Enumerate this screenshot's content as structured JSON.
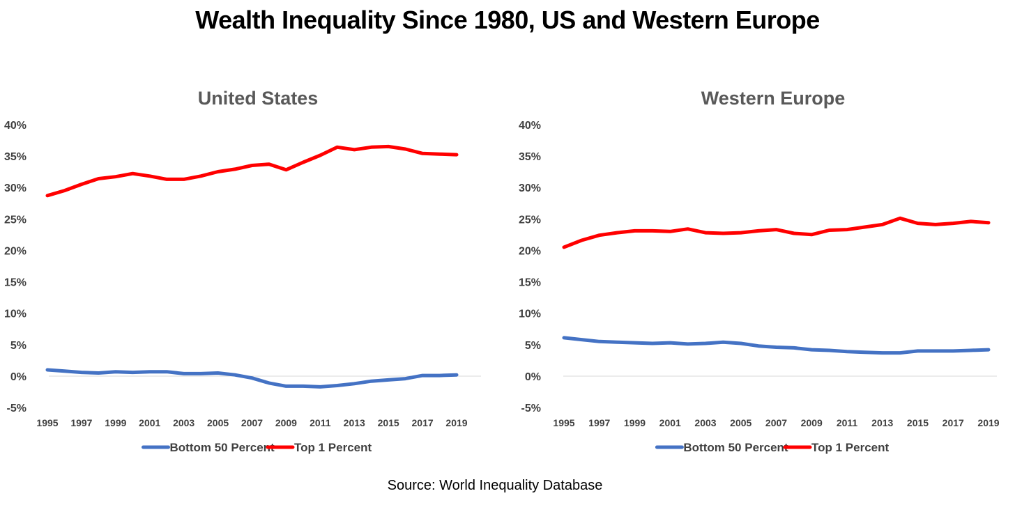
{
  "title": "Wealth Inequality Since 1980, US and Western Europe",
  "source": "Source: World Inequality Database",
  "colors": {
    "bottom50": "#4472C4",
    "top1": "#FF0000",
    "zero_line": "#D9D9D9",
    "panel_title": "#595959",
    "tick_text": "#404040"
  },
  "chart_data": [
    {
      "type": "line",
      "title": "United States",
      "x": [
        1995,
        1996,
        1997,
        1998,
        1999,
        2000,
        2001,
        2002,
        2003,
        2004,
        2005,
        2006,
        2007,
        2008,
        2009,
        2010,
        2011,
        2012,
        2013,
        2014,
        2015,
        2016,
        2017,
        2018,
        2019
      ],
      "x_tick_labels": [
        "1995",
        "1997",
        "1999",
        "2001",
        "2003",
        "2005",
        "2007",
        "2009",
        "2011",
        "2013",
        "2015",
        "2017",
        "2019"
      ],
      "y_tick_labels": [
        "-5%",
        "0%",
        "5%",
        "10%",
        "15%",
        "20%",
        "25%",
        "30%",
        "35%",
        "40%"
      ],
      "ylim": [
        -5,
        40
      ],
      "grid": false,
      "legend_position": "bottom",
      "series": [
        {
          "name": "Bottom 50 Percent",
          "color": "#4472C4",
          "values": [
            1.0,
            0.8,
            0.6,
            0.5,
            0.7,
            0.6,
            0.7,
            0.7,
            0.4,
            0.4,
            0.5,
            0.2,
            -0.3,
            -1.1,
            -1.6,
            -1.6,
            -1.7,
            -1.5,
            -1.2,
            -0.8,
            -0.6,
            -0.4,
            0.1,
            0.1,
            0.2
          ]
        },
        {
          "name": "Top 1 Percent",
          "color": "#FF0000",
          "values": [
            28.7,
            29.5,
            30.5,
            31.4,
            31.7,
            32.2,
            31.8,
            31.3,
            31.3,
            31.8,
            32.5,
            32.9,
            33.5,
            33.7,
            32.8,
            34.0,
            35.1,
            36.4,
            36.0,
            36.4,
            36.5,
            36.1,
            35.4,
            35.3,
            35.2
          ]
        }
      ]
    },
    {
      "type": "line",
      "title": "Western Europe",
      "x": [
        1995,
        1996,
        1997,
        1998,
        1999,
        2000,
        2001,
        2002,
        2003,
        2004,
        2005,
        2006,
        2007,
        2008,
        2009,
        2010,
        2011,
        2012,
        2013,
        2014,
        2015,
        2016,
        2017,
        2018,
        2019
      ],
      "x_tick_labels": [
        "1995",
        "1997",
        "1999",
        "2001",
        "2003",
        "2005",
        "2007",
        "2009",
        "2011",
        "2013",
        "2015",
        "2017",
        "2019"
      ],
      "y_tick_labels": [
        "-5%",
        "0%",
        "5%",
        "10%",
        "15%",
        "20%",
        "25%",
        "30%",
        "35%",
        "40%"
      ],
      "ylim": [
        -5,
        40
      ],
      "grid": false,
      "legend_position": "bottom",
      "series": [
        {
          "name": "Bottom 50 Percent",
          "color": "#4472C4",
          "values": [
            6.1,
            5.8,
            5.5,
            5.4,
            5.3,
            5.2,
            5.3,
            5.1,
            5.2,
            5.4,
            5.2,
            4.8,
            4.6,
            4.5,
            4.2,
            4.1,
            3.9,
            3.8,
            3.7,
            3.7,
            4.0,
            4.0,
            4.0,
            4.1,
            4.2
          ]
        },
        {
          "name": "Top 1 Percent",
          "color": "#FF0000",
          "values": [
            20.5,
            21.6,
            22.4,
            22.8,
            23.1,
            23.1,
            23.0,
            23.4,
            22.8,
            22.7,
            22.8,
            23.1,
            23.3,
            22.7,
            22.5,
            23.2,
            23.3,
            23.7,
            24.1,
            25.1,
            24.3,
            24.1,
            24.3,
            24.6,
            24.4
          ]
        }
      ]
    }
  ]
}
